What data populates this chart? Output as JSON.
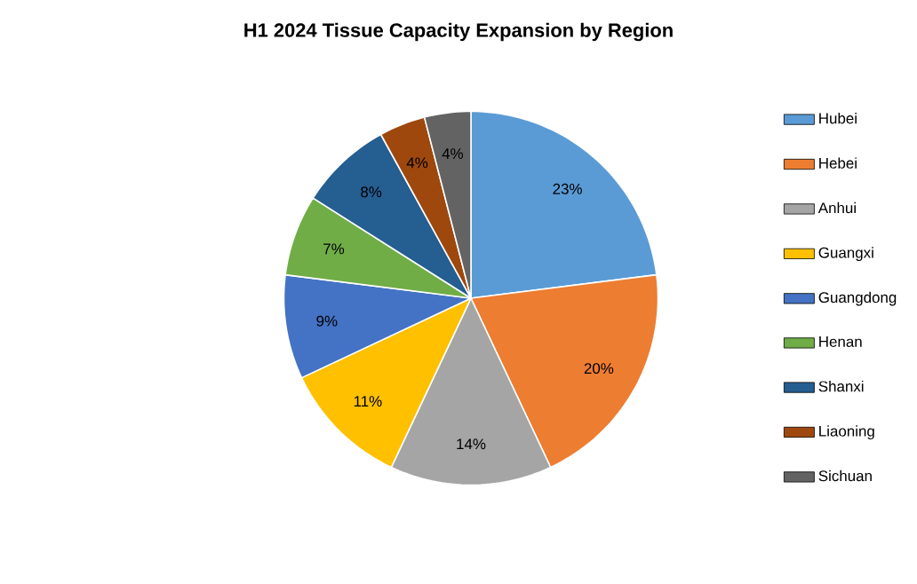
{
  "chart_data": {
    "type": "pie",
    "title": "H1 2024 Tissue Capacity Expansion by Region",
    "categories": [
      "Hubei",
      "Hebei",
      "Anhui",
      "Guangxi",
      "Guangdong",
      "Henan",
      "Shanxi",
      "Liaoning",
      "Sichuan"
    ],
    "values": [
      23,
      20,
      14,
      11,
      9,
      7,
      8,
      4,
      4
    ],
    "value_labels": [
      "23%",
      "20%",
      "14%",
      "11%",
      "9%",
      "7%",
      "8%",
      "4%",
      "4%"
    ],
    "colors": [
      "#5b9bd5",
      "#ed7d31",
      "#a5a5a5",
      "#ffc000",
      "#4472c4",
      "#70ad47",
      "#255e91",
      "#9e480e",
      "#636363"
    ],
    "legend": "right"
  }
}
